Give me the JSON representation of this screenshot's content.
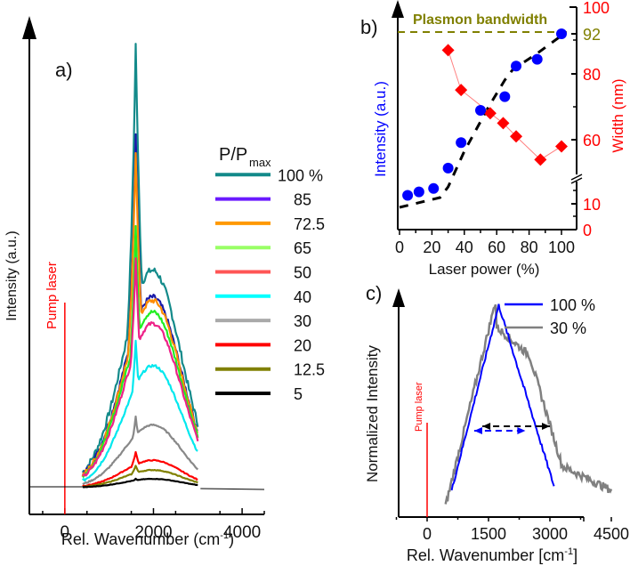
{
  "chart_data": [
    {
      "panel": "a)",
      "type": "line",
      "xlabel": "Rel. Wavenumber (cm",
      "xlabel_sup": "-1",
      "xlabel_end": ")",
      "ylabel": "Intensity (a.u.)",
      "xlim": [
        -800,
        4500
      ],
      "xticks": [
        0,
        2000,
        4000
      ],
      "xtick_labels": [
        "0",
        "2000",
        "4000"
      ],
      "annotation": "Pump laser",
      "legend_title_main": "P/P",
      "legend_title_sub": "max",
      "legend_position": "right",
      "pump_x": 0,
      "x_range": [
        400,
        3000
      ],
      "peak_x": 1600,
      "series": [
        {
          "name": "100 %",
          "color": "#138a8a",
          "peak": 1.0,
          "shoulder": 0.45,
          "base": 0.22
        },
        {
          "name": "85",
          "color": "#1a1aa8",
          "peak": 0.8,
          "shoulder": 0.4,
          "base": 0.18
        },
        {
          "name": "72.5",
          "color": "#ff8c00",
          "peak": 0.76,
          "shoulder": 0.4,
          "base": 0.16
        },
        {
          "name": "65",
          "color": "#22ee22",
          "peak": 0.59,
          "shoulder": 0.38,
          "base": 0.14
        },
        {
          "name": "50",
          "color": "#ee2288",
          "peak": 0.52,
          "shoulder": 0.36,
          "base": 0.12
        },
        {
          "name": "40",
          "color": "#00e8ee",
          "peak": 0.33,
          "shoulder": 0.28,
          "base": 0.06
        },
        {
          "name": "30",
          "color": "#888888",
          "peak": 0.16,
          "shoulder": 0.14,
          "base": 0.04
        },
        {
          "name": "20",
          "color": "#ff0000",
          "peak": 0.08,
          "shoulder": 0.06,
          "base": 0.02
        },
        {
          "name": "12.5",
          "color": "#808000",
          "peak": 0.05,
          "shoulder": 0.04,
          "base": 0.01
        },
        {
          "name": "5",
          "color": "#000000",
          "peak": 0.02,
          "shoulder": 0.02,
          "base": 0.005
        }
      ],
      "legend_colors": [
        "#138a8a",
        "#6a1aff",
        "#ff9900",
        "#99ff66",
        "#ff5555",
        "#00ffff",
        "#aaaaaa",
        "#ff0000",
        "#808000",
        "#000000"
      ]
    },
    {
      "panel": "b)",
      "type": "scatter",
      "xlabel": "Laser power (%)",
      "ylabel_left": "Intensity (a.u.)",
      "ylabel_right": "Width (nm)",
      "xlim": [
        0,
        100
      ],
      "xticks": [
        0,
        20,
        40,
        60,
        80,
        100
      ],
      "xtick_labels": [
        "0",
        "20",
        "40",
        "60",
        "80",
        "100"
      ],
      "right_ticks": [
        "0",
        "10",
        "60",
        "80",
        "100"
      ],
      "right_tick_values": [
        0,
        10,
        60,
        80,
        100
      ],
      "axis_break": true,
      "plasmon_label": "Plasmon bandwidth",
      "plasmon_value": 92,
      "plasmon_tick_label": "92",
      "intensity_series": {
        "name": "Intensity",
        "color": "#0000ff",
        "x": [
          5,
          12,
          21,
          30,
          38,
          50,
          65,
          72,
          85,
          100
        ],
        "y_relative": [
          0.05,
          0.07,
          0.09,
          0.21,
          0.36,
          0.55,
          0.63,
          0.81,
          0.85,
          1.0
        ]
      },
      "width_series": {
        "name": "Width (nm)",
        "color": "#ff0000",
        "x": [
          30,
          38,
          56,
          64,
          72,
          87,
          100
        ],
        "y": [
          87,
          75,
          68,
          65,
          61,
          54,
          58
        ]
      },
      "fit_color": "#000000",
      "plasmon_color": "#808000",
      "left_axis_color": "#0000ff",
      "right_axis_color": "#ff0000"
    },
    {
      "panel": "c)",
      "type": "line",
      "xlabel": "Rel. Wavenumber [cm",
      "xlabel_sup": "-1",
      "xlabel_end": "]",
      "ylabel": "Normalized Intensity",
      "xlim": [
        -900,
        4500
      ],
      "xticks": [
        0,
        1500,
        3000,
        4500
      ],
      "xtick_labels": [
        "0",
        "1500",
        "3000",
        "4500"
      ],
      "annotation": "Pump laser",
      "pump_x": 0,
      "legend_position": "top-right",
      "series": [
        {
          "name": "100 %",
          "color": "#0000ff",
          "x_range": [
            600,
            3100
          ],
          "peak_x": 1750
        },
        {
          "name": "30 %",
          "color": "#808080",
          "x_range": [
            450,
            4500
          ],
          "peak_x": 1650
        }
      ],
      "fwhm_100": [
        1150,
        2400
      ],
      "fwhm_30": [
        1350,
        3000
      ]
    }
  ]
}
